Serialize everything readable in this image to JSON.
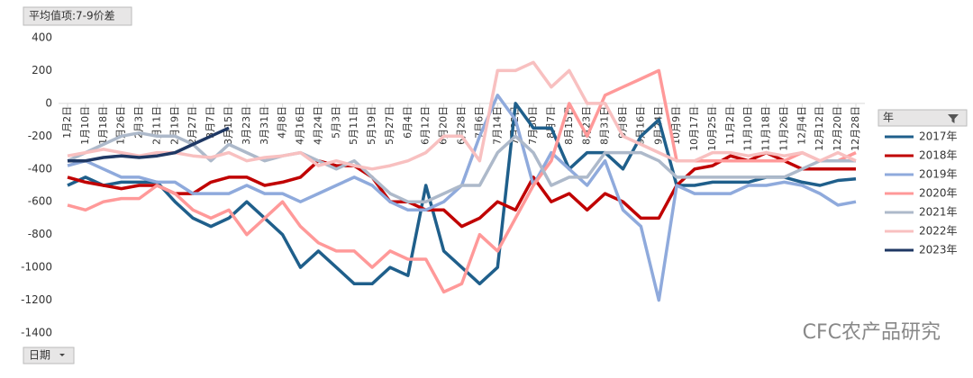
{
  "chart_data": {
    "type": "line",
    "field_button": "平均值项:7-9价差",
    "axis_button": "日期",
    "legend_title": "年",
    "watermark": "CFC农产品研究",
    "categories": [
      "1月2日",
      "1月10日",
      "1月18日",
      "1月26日",
      "2月3日",
      "2月11日",
      "2月19日",
      "2月27日",
      "3月7日",
      "3月15日",
      "3月23日",
      "3月31日",
      "4月8日",
      "4月16日",
      "4月24日",
      "5月3日",
      "5月11日",
      "5月19日",
      "5月27日",
      "6月4日",
      "6月12日",
      "6月20日",
      "6月28日",
      "7月6日",
      "7月14日",
      "7月22日",
      "7月30日",
      "8月7日",
      "8月15日",
      "8月23日",
      "8月31日",
      "9月8日",
      "9月16日",
      "9月24日",
      "10月9日",
      "10月17日",
      "10月25日",
      "11月2日",
      "11月10日",
      "11月18日",
      "11月26日",
      "12月4日",
      "12月12日",
      "12月20日",
      "12月28日"
    ],
    "ylim": [
      -1400,
      400
    ],
    "yticks": [
      400,
      200,
      0,
      -200,
      -400,
      -600,
      -800,
      -1000,
      -1200,
      -1400
    ],
    "series": [
      {
        "name": "2017年",
        "color": "#1f5f8b",
        "values": [
          -500,
          -450,
          -500,
          -480,
          -480,
          -480,
          -600,
          -700,
          -750,
          -700,
          -600,
          -700,
          -800,
          -1000,
          -900,
          -1000,
          -1100,
          -1100,
          -1000,
          -1050,
          -500,
          -900,
          -1000,
          -1100,
          -1000,
          0,
          -150,
          -150,
          -400,
          -300,
          -300,
          -400,
          -200,
          -100,
          -500,
          -500,
          -480,
          -480,
          -480,
          -450,
          -450,
          -480,
          -500,
          -470,
          -460
        ]
      },
      {
        "name": "2018年",
        "color": "#c00000",
        "values": [
          -450,
          -480,
          -500,
          -520,
          -500,
          -500,
          -550,
          -550,
          -480,
          -450,
          -450,
          -500,
          -480,
          -450,
          -350,
          -380,
          -380,
          -450,
          -600,
          -600,
          -650,
          -650,
          -750,
          -700,
          -600,
          -650,
          -450,
          -600,
          -550,
          -650,
          -550,
          -600,
          -700,
          -700,
          -500,
          -400,
          -380,
          -320,
          -350,
          -300,
          -350,
          -400,
          -400,
          -400,
          -400
        ]
      },
      {
        "name": "2019年",
        "color": "#8faadc",
        "values": [
          -380,
          -350,
          -400,
          -450,
          -450,
          -480,
          -480,
          -550,
          -550,
          -550,
          -500,
          -550,
          -550,
          -600,
          -550,
          -500,
          -450,
          -500,
          -600,
          -650,
          -650,
          -600,
          -500,
          -200,
          50,
          -100,
          -500,
          -300,
          -400,
          -500,
          -350,
          -650,
          -750,
          -1200,
          -500,
          -550,
          -550,
          -550,
          -500,
          -500,
          -480,
          -500,
          -550,
          -620,
          -600
        ]
      },
      {
        "name": "2020年",
        "color": "#ff9999",
        "values": [
          -620,
          -650,
          -600,
          -580,
          -580,
          -500,
          -550,
          -650,
          -700,
          -650,
          -800,
          -700,
          -600,
          -750,
          -850,
          -900,
          -900,
          -1000,
          -900,
          -950,
          -950,
          -1150,
          -1100,
          -800,
          -900,
          -700,
          -500,
          -350,
          0,
          -200,
          50,
          100,
          150,
          200,
          -350,
          -350,
          -350,
          -350,
          -350,
          -350,
          -350,
          -300,
          -350,
          -350,
          -300
        ]
      },
      {
        "name": "2021年",
        "color": "#adb9ca",
        "values": [
          -350,
          -300,
          -250,
          -200,
          -180,
          -200,
          -200,
          -250,
          -350,
          -250,
          -300,
          -350,
          -320,
          -300,
          -350,
          -400,
          -350,
          -450,
          -550,
          -600,
          -600,
          -550,
          -500,
          -500,
          -300,
          -200,
          -300,
          -500,
          -450,
          -450,
          -300,
          -300,
          -300,
          -350,
          -450,
          -450,
          -450,
          -450,
          -450,
          -450,
          -450,
          -400,
          -350,
          -350,
          -350
        ]
      },
      {
        "name": "2022年",
        "color": "#f8c0c0",
        "values": [
          -320,
          -300,
          -280,
          -300,
          -320,
          -300,
          -300,
          -320,
          -330,
          -300,
          -350,
          -330,
          -320,
          -300,
          -380,
          -350,
          -380,
          -400,
          -380,
          -350,
          -300,
          -200,
          -200,
          -350,
          200,
          200,
          250,
          100,
          200,
          0,
          0,
          -200,
          -250,
          -300,
          -350,
          -350,
          -300,
          -300,
          -320,
          -300,
          -320,
          -300,
          -350,
          -300,
          -350
        ]
      },
      {
        "name": "2023年",
        "color": "#1f3864",
        "values": [
          -350,
          -350,
          -330,
          -320,
          -330,
          -320,
          -300,
          -250,
          -200,
          -150,
          null,
          null,
          null,
          null,
          null,
          null,
          null,
          null,
          null,
          null,
          null,
          null,
          null,
          null,
          null,
          null,
          null,
          null,
          null,
          null,
          null,
          null,
          null,
          null,
          null,
          null,
          null,
          null,
          null,
          null,
          null,
          null,
          null,
          null,
          null
        ]
      }
    ]
  }
}
